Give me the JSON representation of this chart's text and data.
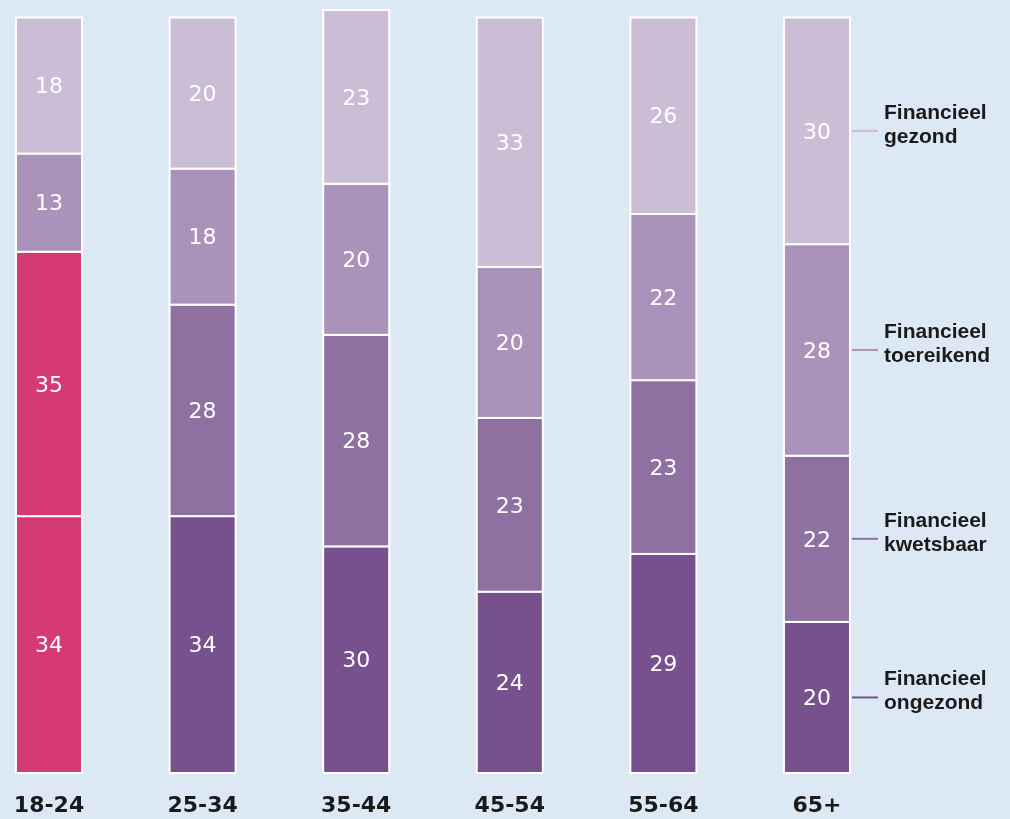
{
  "chart_data": {
    "type": "bar",
    "stacked": true,
    "data_labels": true,
    "legend": "right",
    "categories": [
      "18-24",
      "25-34",
      "35-44",
      "45-54",
      "55-64",
      "65+"
    ],
    "series": [
      {
        "name": "Financieel ongezond",
        "color": "#77518d",
        "colors": [
          "#d63a72",
          "#77518d",
          "#77518d",
          "#77518d",
          "#77518d",
          "#77518d"
        ],
        "values": [
          34,
          34,
          30,
          24,
          29,
          20
        ]
      },
      {
        "name": "Financieel kwetsbaar",
        "color": "#8e71a1",
        "colors": [
          "#d63a72",
          "#8e71a1",
          "#8e71a1",
          "#8e71a1",
          "#8e71a1",
          "#8e71a1"
        ],
        "values": [
          35,
          28,
          28,
          23,
          23,
          22
        ]
      },
      {
        "name": "Financieel toereikend",
        "color": "#ab92ba",
        "values": [
          13,
          18,
          20,
          20,
          22,
          28
        ]
      },
      {
        "name": "Financieel gezond",
        "color": "#cbbdd6",
        "values": [
          18,
          20,
          23,
          33,
          26,
          30
        ]
      }
    ]
  }
}
